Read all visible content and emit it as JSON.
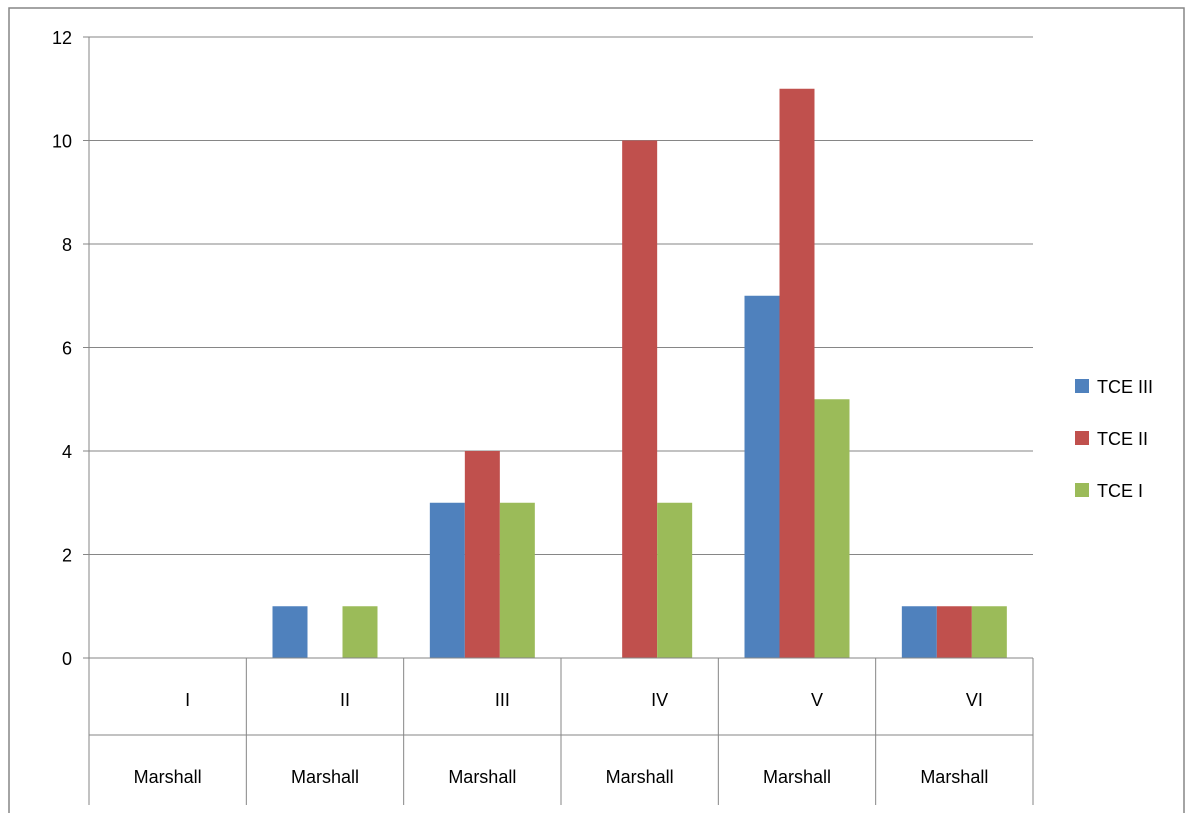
{
  "chart_data": {
    "type": "bar",
    "title": "",
    "xlabel": "",
    "ylabel": "",
    "ylim": [
      0,
      12
    ],
    "yticks": [
      0,
      2,
      4,
      6,
      8,
      10,
      12
    ],
    "grid": true,
    "legend_position": "right",
    "categories": [
      "I",
      "II",
      "III",
      "IV",
      "V",
      "VI"
    ],
    "category_group_label": "Marshall",
    "series": [
      {
        "name": "TCE III",
        "color": "#4F81BD",
        "values": [
          0,
          1,
          3,
          0,
          7,
          1
        ]
      },
      {
        "name": "TCE II",
        "color": "#C0504D",
        "values": [
          0,
          0,
          4,
          10,
          11,
          1
        ]
      },
      {
        "name": "TCE I",
        "color": "#9BBB59",
        "values": [
          0,
          1,
          3,
          3,
          5,
          1
        ]
      }
    ]
  }
}
